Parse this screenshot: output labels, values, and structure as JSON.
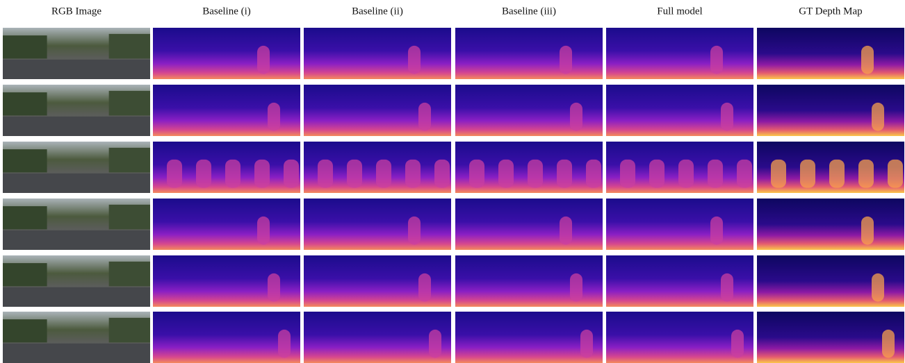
{
  "columns": [
    "RGB Image",
    "Baseline (i)",
    "Baseline (ii)",
    "Baseline (iii)",
    "Full model",
    "GT Depth Map"
  ]
}
